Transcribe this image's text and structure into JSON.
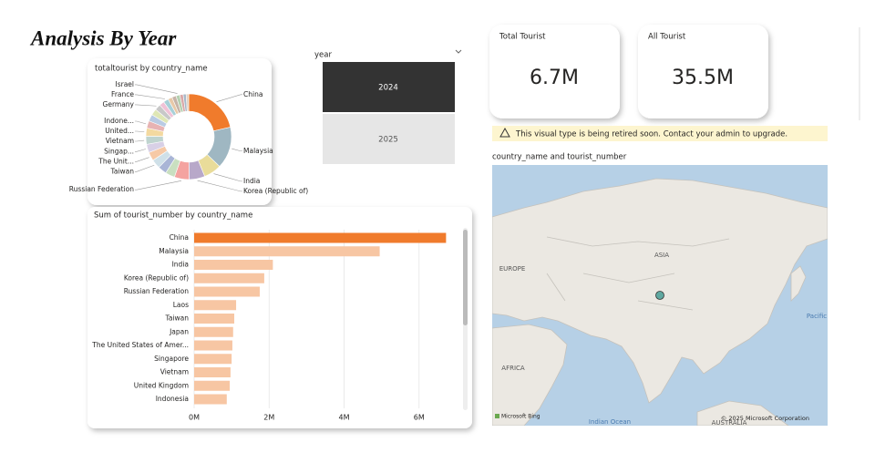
{
  "header": {
    "title": "Analysis By Year"
  },
  "slicer": {
    "title": "year",
    "items": [
      "2024",
      "2025"
    ],
    "selected": 0
  },
  "cards": [
    {
      "label": "Total Tourist",
      "value": "6.7M"
    },
    {
      "label": "All Tourist",
      "value": "35.5M"
    }
  ],
  "warning": "This visual type is being retired soon. Contact your admin to upgrade.",
  "map": {
    "title": "country_name and tourist_number",
    "labels": [
      "EUROPE",
      "ASIA",
      "AFRICA",
      "Indian Ocean",
      "AUSTRALIA",
      "Pacific"
    ],
    "attribution": "© 2025 Microsoft Corporation",
    "logo": "Microsoft Bing"
  },
  "chart_data": [
    {
      "type": "donut",
      "title": "totaltourist by country_name",
      "categories": [
        "China",
        "Malaysia",
        "India",
        "Korea (Republic of)",
        "Russian Federation",
        null,
        null,
        "Taiwan",
        "The Unit...",
        "Singap...",
        "Vietnam",
        "United...",
        "Indone...",
        null,
        null,
        "Germany",
        null,
        "France",
        null,
        null,
        "Israel",
        null,
        null,
        null
      ],
      "values": [
        6720000,
        4950000,
        2100000,
        1870000,
        1750000,
        1120000,
        1040000,
        1070000,
        1020000,
        1000000,
        970000,
        950000,
        870000,
        800000,
        750000,
        700000,
        600000,
        600000,
        500000,
        500000,
        450000,
        400000,
        350000,
        300000
      ],
      "colors": [
        "#f07b2c",
        "#9fb7c2",
        "#e9dc9a",
        "#b8a8c9",
        "#f4a3a0",
        "#c9dfc0",
        "#a9b5d6",
        "#cfe0e8",
        "#f6c9a6",
        "#d8d0e6",
        "#bfd4cf",
        "#f3d9a0",
        "#e7b3b3",
        "#b9cbe3",
        "#dfe7b5",
        "#c8c8c8",
        "#f0c2d6",
        "#a8d0d8",
        "#e8c9a8",
        "#c6b4a8",
        "#b4d0b0",
        "#d9a8a8",
        "#a8b8c8",
        "#e0d0c0"
      ]
    },
    {
      "type": "bar",
      "orientation": "horizontal",
      "title": "Sum of tourist_number by country_name",
      "categories": [
        "China",
        "Malaysia",
        "India",
        "Korea (Republic of)",
        "Russian Federation",
        "Laos",
        "Taiwan",
        "Japan",
        "The United States of Amer...",
        "Singapore",
        "Vietnam",
        "United Kingdom",
        "Indonesia"
      ],
      "values": [
        6720000,
        4950000,
        2100000,
        1870000,
        1750000,
        1120000,
        1070000,
        1040000,
        1020000,
        1000000,
        970000,
        950000,
        870000
      ],
      "colors": [
        "#f07b2c",
        "#f7c6a3",
        "#f7c6a3",
        "#f7c6a3",
        "#f7c6a3",
        "#f7c6a3",
        "#f7c6a3",
        "#f7c6a3",
        "#f7c6a3",
        "#f7c6a3",
        "#f7c6a3",
        "#f7c6a3",
        "#f7c6a3"
      ],
      "xlim": [
        0,
        7100000
      ],
      "xticks": [
        {
          "value": 0,
          "label": "0M"
        },
        {
          "value": 2000000,
          "label": "2M"
        },
        {
          "value": 4000000,
          "label": "4M"
        },
        {
          "value": 6000000,
          "label": "6M"
        }
      ],
      "grid": true
    }
  ]
}
